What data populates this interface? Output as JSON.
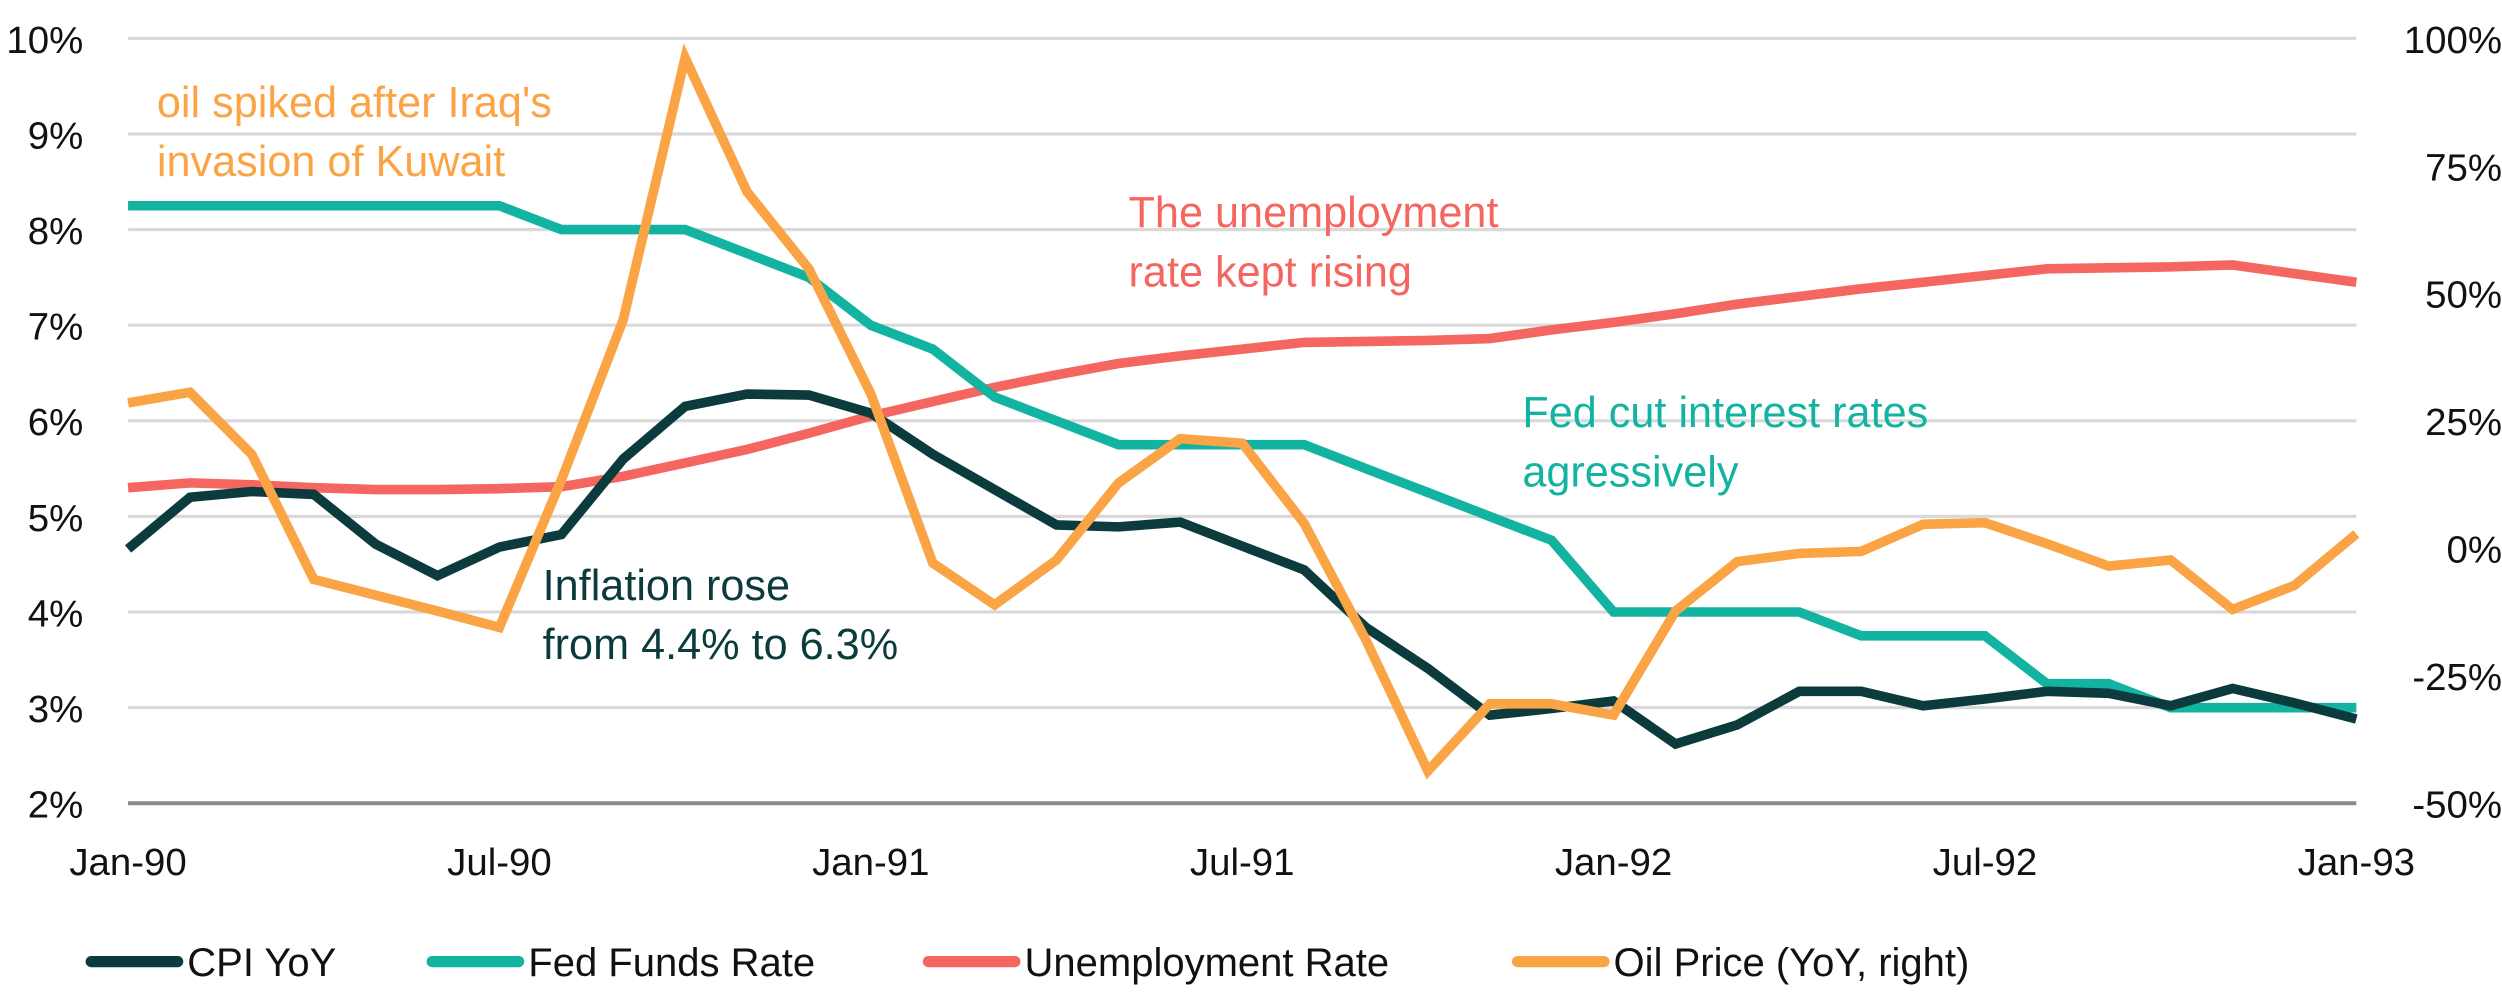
{
  "chart_data": {
    "type": "line",
    "title": "",
    "xlabel": "",
    "ylabel": "",
    "ylim": [
      2,
      10
    ],
    "y2lim": [
      -50,
      100
    ],
    "grid": true,
    "legend_position": "bottom",
    "y_ticks": [
      "10%",
      "9%",
      "8%",
      "7%",
      "6%",
      "5%",
      "4%",
      "3%",
      "2%"
    ],
    "y2_ticks": [
      "100%",
      "75%",
      "50%",
      "25%",
      "0%",
      "-25%",
      "-50%"
    ],
    "x_ticks": [
      "Jan-90",
      "Jul-90",
      "Jan-91",
      "Jul-91",
      "Jan-92",
      "Jul-92",
      "Jan-93"
    ],
    "x_tick_months": [
      0,
      6,
      12,
      18,
      24,
      30,
      36
    ],
    "x": [
      "Jan-90",
      "Feb-90",
      "Mar-90",
      "Apr-90",
      "May-90",
      "Jun-90",
      "Jul-90",
      "Aug-90",
      "Sep-90",
      "Oct-90",
      "Nov-90",
      "Dec-90",
      "Jan-91",
      "Feb-91",
      "Mar-91",
      "Apr-91",
      "May-91",
      "Jun-91",
      "Jul-91",
      "Aug-91",
      "Sep-91",
      "Oct-91",
      "Nov-91",
      "Dec-91",
      "Jan-92",
      "Feb-92",
      "Mar-92",
      "Apr-92",
      "May-92",
      "Jun-92",
      "Jul-92",
      "Aug-92",
      "Sep-92",
      "Oct-92",
      "Nov-92",
      "Dec-92",
      "Jan-93"
    ],
    "series": [
      {
        "name": "CPI YoY",
        "axis": "left",
        "color": "#0b3b3c",
        "values": [
          4.66,
          5.2,
          5.26,
          5.23,
          4.71,
          4.38,
          4.68,
          4.81,
          5.6,
          6.15,
          6.28,
          6.27,
          6.08,
          5.65,
          5.28,
          4.91,
          4.89,
          4.94,
          4.69,
          4.44,
          3.84,
          3.41,
          2.92,
          2.99,
          3.07,
          2.62,
          2.82,
          3.17,
          3.17,
          3.02,
          3.09,
          3.17,
          3.15,
          3.02,
          3.2,
          3.05,
          2.88
        ]
      },
      {
        "name": "Fed Funds Rate",
        "axis": "left",
        "color": "#12b3a0",
        "values": [
          8.25,
          8.25,
          8.25,
          8.25,
          8.25,
          8.25,
          8.25,
          8.0,
          8.0,
          8.0,
          7.75,
          7.5,
          7.0,
          6.75,
          6.25,
          6.0,
          5.75,
          5.75,
          5.75,
          5.75,
          5.5,
          5.25,
          5.0,
          4.75,
          4.0,
          4.0,
          4.0,
          4.0,
          3.75,
          3.75,
          3.75,
          3.25,
          3.25,
          3.0,
          3.0,
          3.0,
          3.0
        ]
      },
      {
        "name": "Unemployment Rate",
        "axis": "left",
        "color": "#f4665f",
        "values": [
          5.3,
          5.35,
          5.33,
          5.3,
          5.28,
          5.28,
          5.29,
          5.31,
          5.42,
          5.56,
          5.7,
          5.87,
          6.05,
          6.2,
          6.35,
          6.48,
          6.6,
          6.68,
          6.75,
          6.82,
          6.83,
          6.84,
          6.86,
          6.95,
          7.03,
          7.12,
          7.22,
          7.3,
          7.38,
          7.45,
          7.52,
          7.59,
          7.6,
          7.61,
          7.63,
          7.54,
          7.45
        ]
      },
      {
        "name": "Oil Price (YoY, right)",
        "axis": "right",
        "color": "#fba446",
        "values": [
          28.5,
          30.6,
          18.4,
          -6.1,
          -9.2,
          -12.3,
          -15.5,
          13.4,
          44.8,
          96.2,
          69.9,
          54.8,
          30.3,
          -2.9,
          -11.1,
          -2.3,
          12.8,
          21.5,
          20.6,
          4.9,
          -18.0,
          -43.7,
          -30.5,
          -30.5,
          -32.7,
          -12.3,
          -2.6,
          -1.0,
          -0.6,
          4.7,
          5.0,
          0.9,
          -3.5,
          -2.3,
          -12.0,
          -7.3,
          2.8
        ]
      }
    ],
    "annotations": [
      {
        "id": "oil",
        "lines": [
          "oil spiked after Iraq's",
          "invasion of Kuwait"
        ],
        "color": "#fba446"
      },
      {
        "id": "unemployment",
        "lines": [
          "The unemployment",
          "rate kept rising"
        ],
        "color": "#f4665f"
      },
      {
        "id": "fed",
        "lines": [
          "Fed cut interest rates",
          "agressively"
        ],
        "color": "#12b3a0"
      },
      {
        "id": "inflation",
        "lines": [
          "Inflation rose",
          "from 4.4% to 6.3%"
        ],
        "color": "#0b3b3c"
      }
    ]
  }
}
